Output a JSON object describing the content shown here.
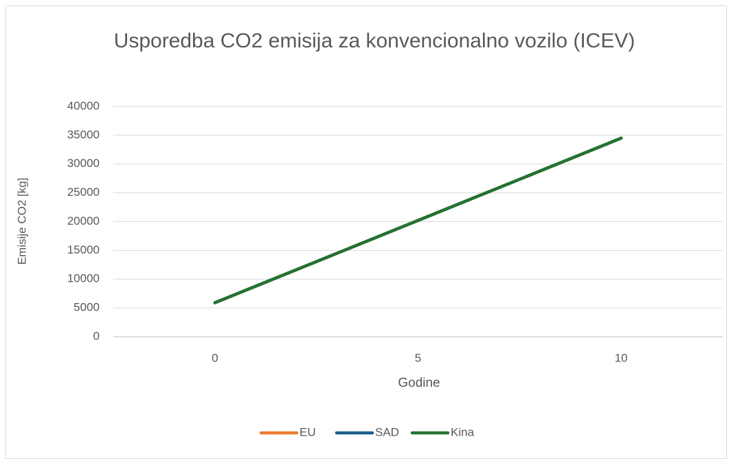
{
  "chart_data": {
    "type": "line",
    "title": "Usporedba CO2 emisija za konvencionalno vozilo (ICEV)",
    "x_label": "Godine",
    "y_label": "Emisije CO2 [kg]",
    "categories": [
      "0",
      "5",
      "10"
    ],
    "series": [
      {
        "name": "EU",
        "color": "#ed7d31",
        "values": [
          5900,
          20200,
          34500
        ]
      },
      {
        "name": "SAD",
        "color": "#1f5f8b",
        "values": [
          5900,
          20200,
          34500
        ]
      },
      {
        "name": "Kina",
        "color": "#23732f",
        "values": [
          5900,
          20200,
          34500
        ]
      }
    ],
    "ylim": [
      0,
      40000
    ],
    "yticks": [
      0,
      5000,
      10000,
      15000,
      20000,
      25000,
      30000,
      35000,
      40000
    ],
    "grid": true,
    "legend": "bottom"
  }
}
